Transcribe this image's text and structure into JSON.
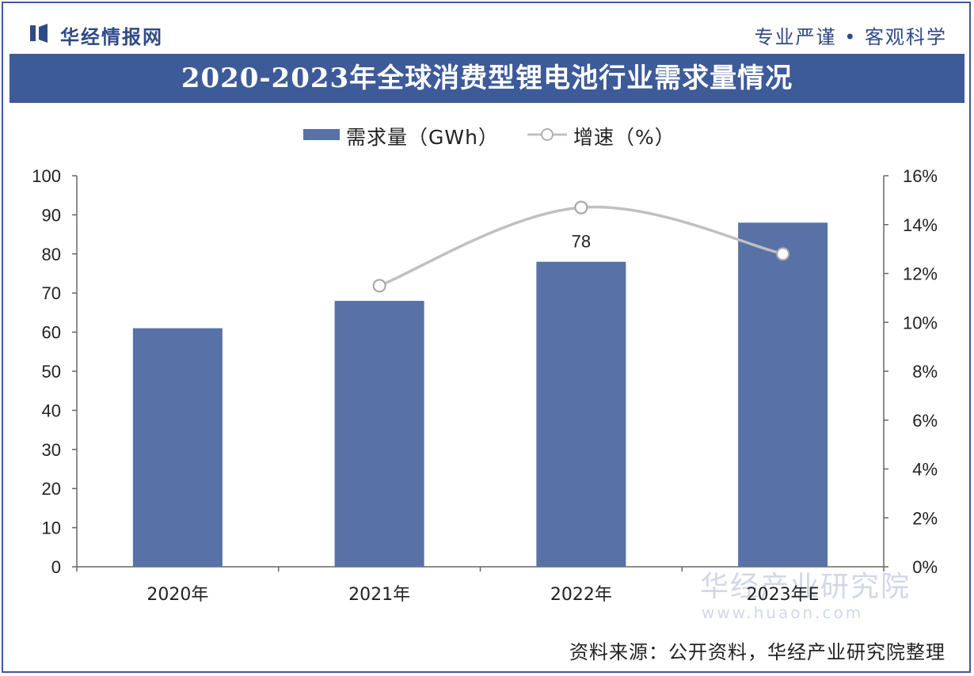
{
  "header": {
    "brand": "华经情报网",
    "slogan": "专业严谨 • 客观科学",
    "title": "2020-2023年全球消费型锂电池行业需求量情况"
  },
  "footer": {
    "source": "资料来源：公开资料，华经产业研究院整理"
  },
  "watermark": {
    "text": "华经产业研究院",
    "url": "www.huaon.com"
  },
  "colors": {
    "bar": "#5872a8",
    "line": "#c0c0c0",
    "title_band": "#3d5a99"
  },
  "chart_data": {
    "type": "bar",
    "title": "2020-2023年全球消费型锂电池行业需求量情况",
    "categories": [
      "2020年",
      "2021年",
      "2022年",
      "2023年E"
    ],
    "series": [
      {
        "name": "需求量（GWh）",
        "type": "bar",
        "axis": "left",
        "values": [
          61,
          68,
          78,
          88
        ]
      },
      {
        "name": "增速（%）",
        "type": "line",
        "axis": "right",
        "values": [
          null,
          11.5,
          14.7,
          12.8
        ]
      }
    ],
    "data_labels": [
      {
        "series": 0,
        "index": 2,
        "text": "78"
      }
    ],
    "left_axis": {
      "min": 0,
      "max": 100,
      "step": 10,
      "ticks": [
        "0",
        "10",
        "20",
        "30",
        "40",
        "50",
        "60",
        "70",
        "80",
        "90",
        "100"
      ]
    },
    "right_axis": {
      "min": 0,
      "max": 16,
      "step": 2,
      "ticks": [
        "0%",
        "2%",
        "4%",
        "6%",
        "8%",
        "10%",
        "12%",
        "14%",
        "16%"
      ]
    },
    "legend": "top-center",
    "grid": false
  }
}
